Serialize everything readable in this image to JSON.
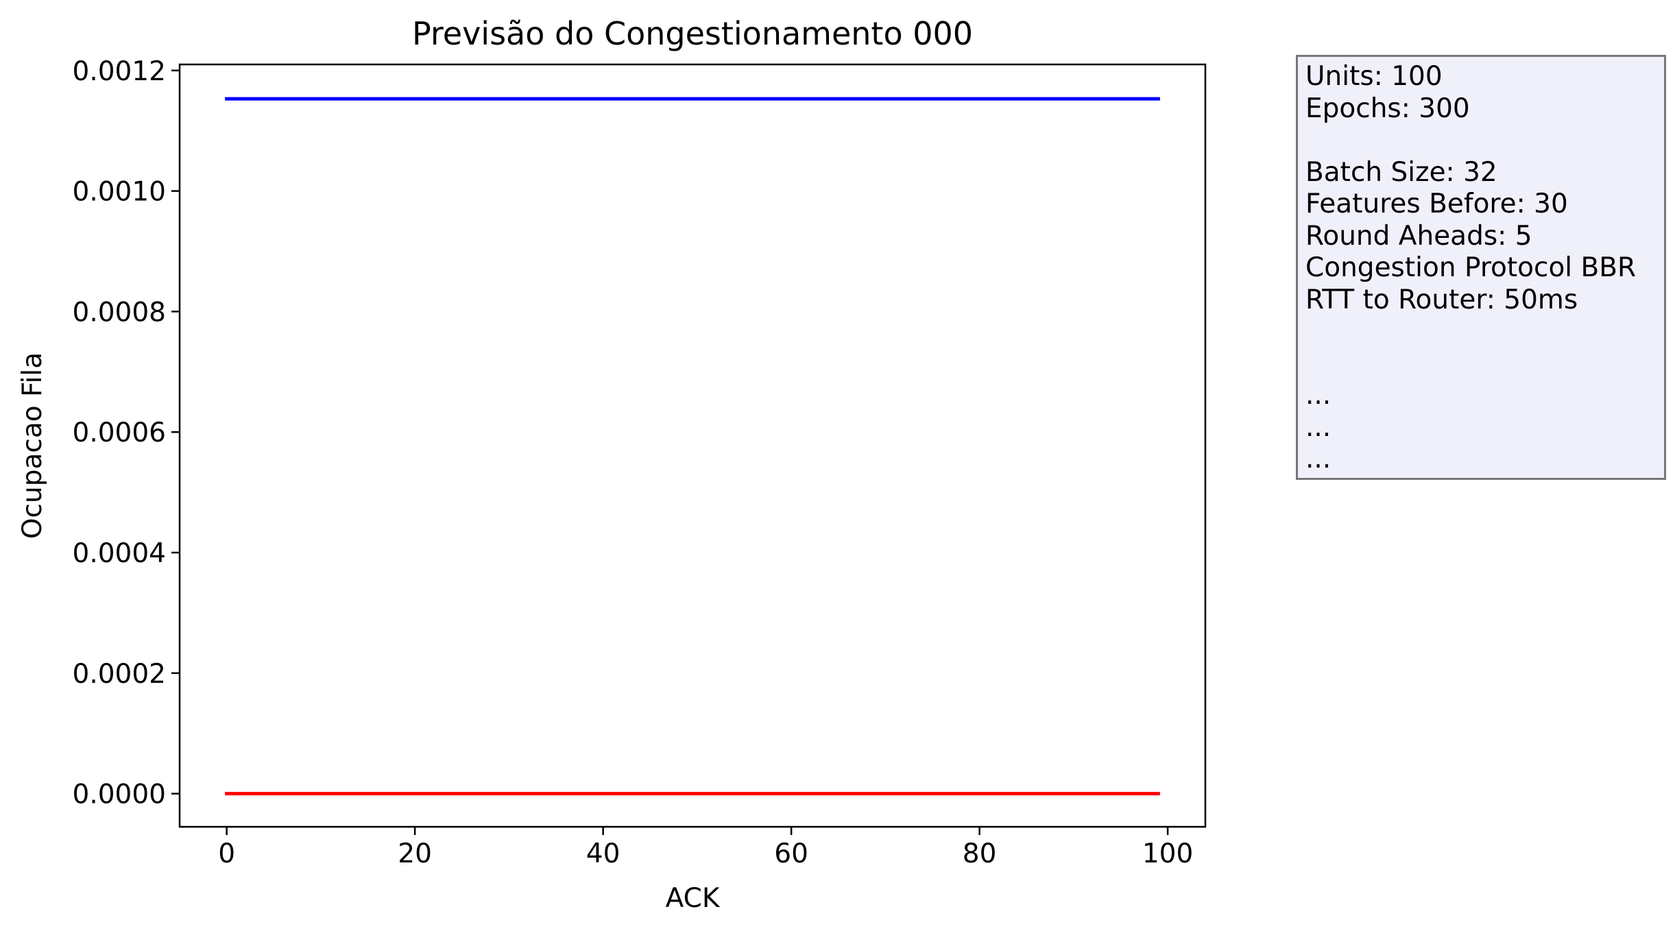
{
  "chart_data": {
    "type": "line",
    "title": "Previsão do Congestionamento 000",
    "xlabel": "ACK",
    "ylabel": "Ocupacao Fila",
    "xlim": [
      -5,
      104
    ],
    "ylim": [
      -5.5e-05,
      0.00121
    ],
    "x_ticks": [
      0,
      20,
      40,
      60,
      80,
      100
    ],
    "x_tick_labels": [
      "0",
      "20",
      "40",
      "60",
      "80",
      "100"
    ],
    "y_ticks": [
      0,
      0.0002,
      0.0004,
      0.0006,
      0.0008,
      0.001,
      0.0012
    ],
    "y_tick_labels": [
      "0.0000",
      "0.0002",
      "0.0004",
      "0.0006",
      "0.0008",
      "0.0010",
      "0.0012"
    ],
    "grid": false,
    "x_range": [
      0,
      99
    ],
    "series": [
      {
        "color": "#0000ff",
        "constant_value": 0.001153
      },
      {
        "color": "#ff0000",
        "constant_value": 0.0
      }
    ]
  },
  "info_box": {
    "lines": [
      "Units: 100",
      "Epochs: 300",
      "",
      "Batch Size: 32",
      "Features Before: 30",
      "Round Aheads: 5",
      "Congestion Protocol BBR",
      "RTT to Router: 50ms",
      "",
      "",
      "...",
      "...",
      "..."
    ]
  }
}
